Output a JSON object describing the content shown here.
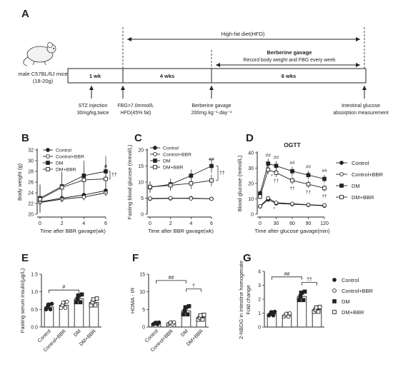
{
  "panels": {
    "A": "A",
    "B": "B",
    "C": "C",
    "D": "D",
    "E": "E",
    "F": "F",
    "G": "G"
  },
  "schematic": {
    "mouse_label_1": "male C57BL/6J mice",
    "mouse_label_2": "(18-20g)",
    "period_1": "1 wk",
    "period_2": "4 wks",
    "period_3": "6 wks",
    "hfd_label": "High-fat diet(HFD)",
    "berberine_title": "Berberine gavage",
    "berberine_sub": "Record body weight and FBG every week",
    "stz_1": "STZ injection",
    "stz_2": "30mg/kg,twice",
    "fbg_1": "FBG>7.0mmol/L",
    "fbg_2": "HFD(45% fat)",
    "bg_1": "Berberine gavage",
    "bg_2": "200mg·kg⁻¹·day⁻¹",
    "int_1": "Intestinal glucose",
    "int_2": "absorption measurement"
  },
  "colors": {
    "ink": "#222222",
    "fill_open": "#ffffff"
  },
  "chart_data": [
    {
      "id": "B",
      "type": "line",
      "x": [
        0,
        2,
        4,
        6
      ],
      "xlabel": "Time after BBR gavage(wk)",
      "ylabel": "Body weight (g)",
      "ylim": [
        20,
        32
      ],
      "yticks": [
        20,
        22,
        24,
        26,
        28,
        30,
        32
      ],
      "xticks": [
        0,
        2,
        4,
        6
      ],
      "series": [
        {
          "name": "Control",
          "marker": "circle",
          "fill": "filled",
          "values": [
            22.3,
            23.0,
            23.6,
            24.4
          ]
        },
        {
          "name": "Control+BBR",
          "marker": "circle",
          "fill": "open",
          "values": [
            22.2,
            22.8,
            23.2,
            24.0
          ]
        },
        {
          "name": "DM",
          "marker": "square",
          "fill": "filled",
          "values": [
            23.0,
            25.2,
            27.2,
            28.0
          ]
        },
        {
          "name": "DM+BBR",
          "marker": "square",
          "fill": "open",
          "values": [
            22.8,
            25.0,
            26.4,
            26.6
          ]
        }
      ],
      "annotations": [
        "#",
        "††"
      ]
    },
    {
      "id": "C",
      "type": "line",
      "x": [
        0,
        2,
        4,
        6
      ],
      "xlabel": "Time after BBR gavage(wk)",
      "ylabel": "Fasting blood glucose (mmol/L)",
      "ylim": [
        0,
        20
      ],
      "yticks": [
        0,
        5,
        10,
        15,
        20
      ],
      "xticks": [
        0,
        2,
        4,
        6
      ],
      "series": [
        {
          "name": "Control",
          "marker": "circle",
          "fill": "filled",
          "values": [
            4.8,
            4.9,
            5.0,
            4.8
          ]
        },
        {
          "name": "Control+BBR",
          "marker": "circle",
          "fill": "open",
          "values": [
            4.9,
            5.0,
            4.9,
            4.8
          ]
        },
        {
          "name": "DM",
          "marker": "square",
          "fill": "filled",
          "values": [
            8.4,
            9.3,
            12.0,
            15.0
          ]
        },
        {
          "name": "DM+BBR",
          "marker": "square",
          "fill": "open",
          "values": [
            8.5,
            9.0,
            9.6,
            10.5
          ]
        }
      ],
      "annotations": [
        "##",
        "††"
      ]
    },
    {
      "id": "D",
      "type": "line",
      "title": "OGTT",
      "x": [
        0,
        15,
        30,
        60,
        90,
        120
      ],
      "xlabel": "Time after glucose gavage(min)",
      "ylabel": "Blood glucose (mmol/L)",
      "ylim": [
        0,
        40
      ],
      "yticks": [
        0,
        10,
        20,
        30,
        40
      ],
      "xticks": [
        0,
        30,
        60,
        90,
        120
      ],
      "series": [
        {
          "name": "Control",
          "marker": "circle",
          "fill": "filled",
          "values": [
            5.0,
            9.5,
            7.0,
            6.5,
            6.0,
            5.5
          ]
        },
        {
          "name": "Control+BBR",
          "marker": "circle",
          "fill": "open",
          "values": [
            5.2,
            10.5,
            7.5,
            6.8,
            6.2,
            5.8
          ]
        },
        {
          "name": "DM",
          "marker": "square",
          "fill": "filled",
          "values": [
            13.5,
            33.0,
            31.5,
            28.0,
            25.5,
            23.0
          ]
        },
        {
          "name": "DM+BBR",
          "marker": "square",
          "fill": "open",
          "values": [
            11.5,
            29.0,
            27.0,
            22.0,
            19.5,
            17.0
          ]
        }
      ],
      "annotations": [
        "##",
        "##",
        "##",
        "##",
        "##",
        "††",
        "††",
        "††",
        "††",
        "*",
        "*"
      ]
    },
    {
      "id": "E",
      "type": "bar",
      "categories": [
        "Control",
        "Control+BBR",
        "DM",
        "DM+BBR"
      ],
      "values": [
        0.57,
        0.62,
        0.8,
        0.7
      ],
      "ylabel": "Fasting serum insulin(μg/L)",
      "ylim": [
        0,
        1.5
      ],
      "yticks": [
        0.0,
        0.5,
        1.0,
        1.5
      ],
      "annotations": [
        "#"
      ]
    },
    {
      "id": "F",
      "type": "bar",
      "categories": [
        "Control",
        "Control+BBR",
        "DM",
        "DM+BBR"
      ],
      "values": [
        1.0,
        1.05,
        4.6,
        2.7
      ],
      "ylabel": "HOMA - IR",
      "ylim": [
        0,
        15
      ],
      "yticks": [
        0,
        5,
        10,
        15
      ],
      "annotations": [
        "##",
        "†"
      ]
    },
    {
      "id": "G",
      "type": "bar",
      "categories": [
        "Control",
        "Control+BBR",
        "DM",
        "DM+BBR"
      ],
      "values": [
        0.95,
        0.85,
        2.2,
        1.25
      ],
      "ylabel_1": "2-NBDG in intestine homogenate",
      "ylabel_2": "Fold change",
      "ylim": [
        0,
        4
      ],
      "yticks": [
        0,
        1,
        2,
        3,
        4
      ],
      "annotations": [
        "##",
        "††"
      ],
      "legend": [
        "Control",
        "Control+BBR",
        "DM",
        "DM+BBR"
      ]
    }
  ]
}
